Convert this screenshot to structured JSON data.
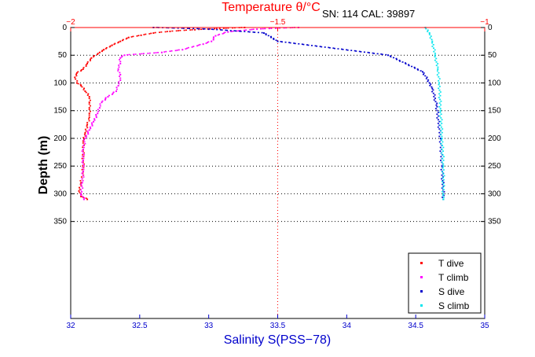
{
  "chart_data": {
    "type": "scatter",
    "title_top": "Temperature θ/°C",
    "annotation": "SN: 114  CAL: 39897",
    "xlabel": "Salinity S(PSS−78)",
    "ylabel": "Depth (m)",
    "x_bottom": {
      "min": 32,
      "max": 35,
      "ticks": [
        "32",
        "32.5",
        "33",
        "33.5",
        "34",
        "34.5",
        "35"
      ],
      "color": "#0000cc"
    },
    "x_top": {
      "min": -2,
      "max": -1,
      "ticks": [
        "−2",
        "−1.5",
        "−1"
      ],
      "color": "#ff0000"
    },
    "y": {
      "min": 0,
      "max": 525,
      "reversed": true,
      "ticks": [
        "0",
        "50",
        "100",
        "150",
        "200",
        "250",
        "300",
        "350"
      ]
    },
    "grid": "horizontal dotted at y ticks, vertical dotted at -1.5°C",
    "legend_position": "bottom-right",
    "colors": {
      "t_dive": "#ff0000",
      "t_climb": "#ff00ff",
      "s_dive": "#0000cc",
      "s_climb": "#00e5ee"
    },
    "series": [
      {
        "name": "T dive",
        "axis": "temperature",
        "color": "#ff0000",
        "points": [
          [
            -1.58,
            0
          ],
          [
            -1.64,
            2
          ],
          [
            -1.7,
            4
          ],
          [
            -1.76,
            7
          ],
          [
            -1.8,
            10
          ],
          [
            -1.83,
            14
          ],
          [
            -1.86,
            18
          ],
          [
            -1.88,
            25
          ],
          [
            -1.9,
            32
          ],
          [
            -1.92,
            40
          ],
          [
            -1.93,
            45
          ],
          [
            -1.95,
            55
          ],
          [
            -1.96,
            65
          ],
          [
            -1.97,
            75
          ],
          [
            -1.985,
            82
          ],
          [
            -1.99,
            90
          ],
          [
            -1.985,
            100
          ],
          [
            -1.975,
            105
          ],
          [
            -1.965,
            115
          ],
          [
            -1.955,
            125
          ],
          [
            -1.955,
            135
          ],
          [
            -1.955,
            145
          ],
          [
            -1.955,
            155
          ],
          [
            -1.955,
            162
          ],
          [
            -1.96,
            175
          ],
          [
            -1.965,
            190
          ],
          [
            -1.97,
            205
          ],
          [
            -1.97,
            220
          ],
          [
            -1.97,
            240
          ],
          [
            -1.97,
            260
          ],
          [
            -1.975,
            280
          ],
          [
            -1.98,
            295
          ],
          [
            -1.975,
            305
          ],
          [
            -1.96,
            310
          ]
        ]
      },
      {
        "name": "T climb",
        "axis": "temperature",
        "color": "#ff00ff",
        "points": [
          [
            -1.45,
            0
          ],
          [
            -1.55,
            3
          ],
          [
            -1.62,
            8
          ],
          [
            -1.65,
            15
          ],
          [
            -1.66,
            25
          ],
          [
            -1.68,
            30
          ],
          [
            -1.73,
            40
          ],
          [
            -1.78,
            45
          ],
          [
            -1.87,
            50
          ],
          [
            -1.88,
            55
          ],
          [
            -1.88,
            65
          ],
          [
            -1.885,
            75
          ],
          [
            -1.88,
            85
          ],
          [
            -1.88,
            95
          ],
          [
            -1.885,
            105
          ],
          [
            -1.89,
            115
          ],
          [
            -1.91,
            125
          ],
          [
            -1.925,
            135
          ],
          [
            -1.93,
            145
          ],
          [
            -1.935,
            155
          ],
          [
            -1.945,
            170
          ],
          [
            -1.955,
            185
          ],
          [
            -1.965,
            200
          ],
          [
            -1.97,
            220
          ],
          [
            -1.97,
            240
          ],
          [
            -1.97,
            260
          ],
          [
            -1.972,
            280
          ],
          [
            -1.975,
            300
          ],
          [
            -1.968,
            310
          ]
        ]
      },
      {
        "name": "S dive",
        "axis": "salinity",
        "color": "#0000cc",
        "points": [
          [
            32.6,
            0
          ],
          [
            33.0,
            3
          ],
          [
            33.4,
            10
          ],
          [
            33.5,
            25
          ],
          [
            34.3,
            50
          ],
          [
            34.55,
            80
          ],
          [
            34.6,
            100
          ],
          [
            34.62,
            110
          ],
          [
            34.65,
            140
          ],
          [
            34.68,
            200
          ],
          [
            34.69,
            250
          ],
          [
            34.7,
            300
          ],
          [
            34.7,
            310
          ]
        ]
      },
      {
        "name": "S climb",
        "axis": "salinity",
        "color": "#00e5ee",
        "points": [
          [
            34.57,
            0
          ],
          [
            34.6,
            10
          ],
          [
            34.62,
            25
          ],
          [
            34.64,
            50
          ],
          [
            34.66,
            75
          ],
          [
            34.67,
            100
          ],
          [
            34.68,
            150
          ],
          [
            34.69,
            200
          ],
          [
            34.7,
            250
          ],
          [
            34.7,
            300
          ],
          [
            34.7,
            310
          ]
        ]
      }
    ]
  }
}
